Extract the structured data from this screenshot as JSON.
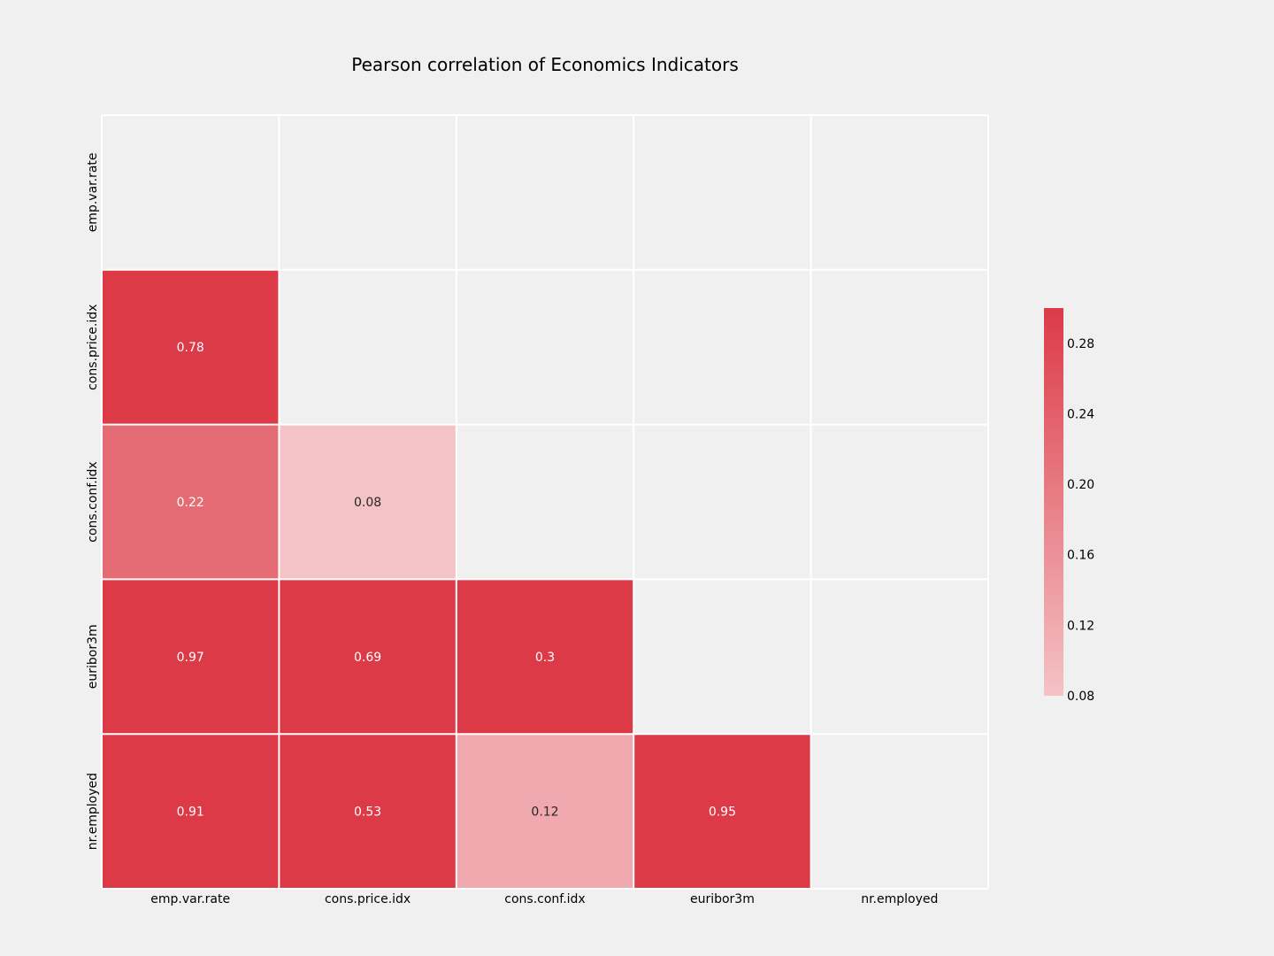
{
  "chart_data": {
    "type": "heatmap",
    "title": "Pearson correlation of Economics Indicators",
    "xlabel": "",
    "ylabel": "",
    "x_categories": [
      "emp.var.rate",
      "cons.price.idx",
      "cons.conf.idx",
      "euribor3m",
      "nr.employed"
    ],
    "y_categories": [
      "emp.var.rate",
      "cons.price.idx",
      "cons.conf.idx",
      "euribor3m",
      "nr.employed"
    ],
    "mask": "upper-triangle-including-diagonal",
    "cells": [
      {
        "row": 1,
        "col": 0,
        "value": 0.78,
        "label": "0.78"
      },
      {
        "row": 2,
        "col": 0,
        "value": 0.22,
        "label": "0.22"
      },
      {
        "row": 2,
        "col": 1,
        "value": 0.08,
        "label": "0.08"
      },
      {
        "row": 3,
        "col": 0,
        "value": 0.97,
        "label": "0.97"
      },
      {
        "row": 3,
        "col": 1,
        "value": 0.69,
        "label": "0.69"
      },
      {
        "row": 3,
        "col": 2,
        "value": 0.3,
        "label": "0.3"
      },
      {
        "row": 4,
        "col": 0,
        "value": 0.91,
        "label": "0.91"
      },
      {
        "row": 4,
        "col": 1,
        "value": 0.53,
        "label": "0.53"
      },
      {
        "row": 4,
        "col": 2,
        "value": 0.12,
        "label": "0.12"
      },
      {
        "row": 4,
        "col": 3,
        "value": 0.95,
        "label": "0.95"
      }
    ],
    "colorbar": {
      "vmin": 0.08,
      "vmax": 0.3,
      "ticks": [
        0.08,
        0.12,
        0.16,
        0.2,
        0.24,
        0.28
      ],
      "tick_labels": [
        "0.08",
        "0.12",
        "0.16",
        "0.20",
        "0.24",
        "0.28"
      ]
    },
    "colors": {
      "low": "#f4c3c6",
      "high": "#dc3a47",
      "background": "#f0f0f0",
      "gridline": "#ffffff",
      "text_dark": "#262626",
      "text_light": "#ffffff"
    },
    "grid": true,
    "legend": "right"
  }
}
